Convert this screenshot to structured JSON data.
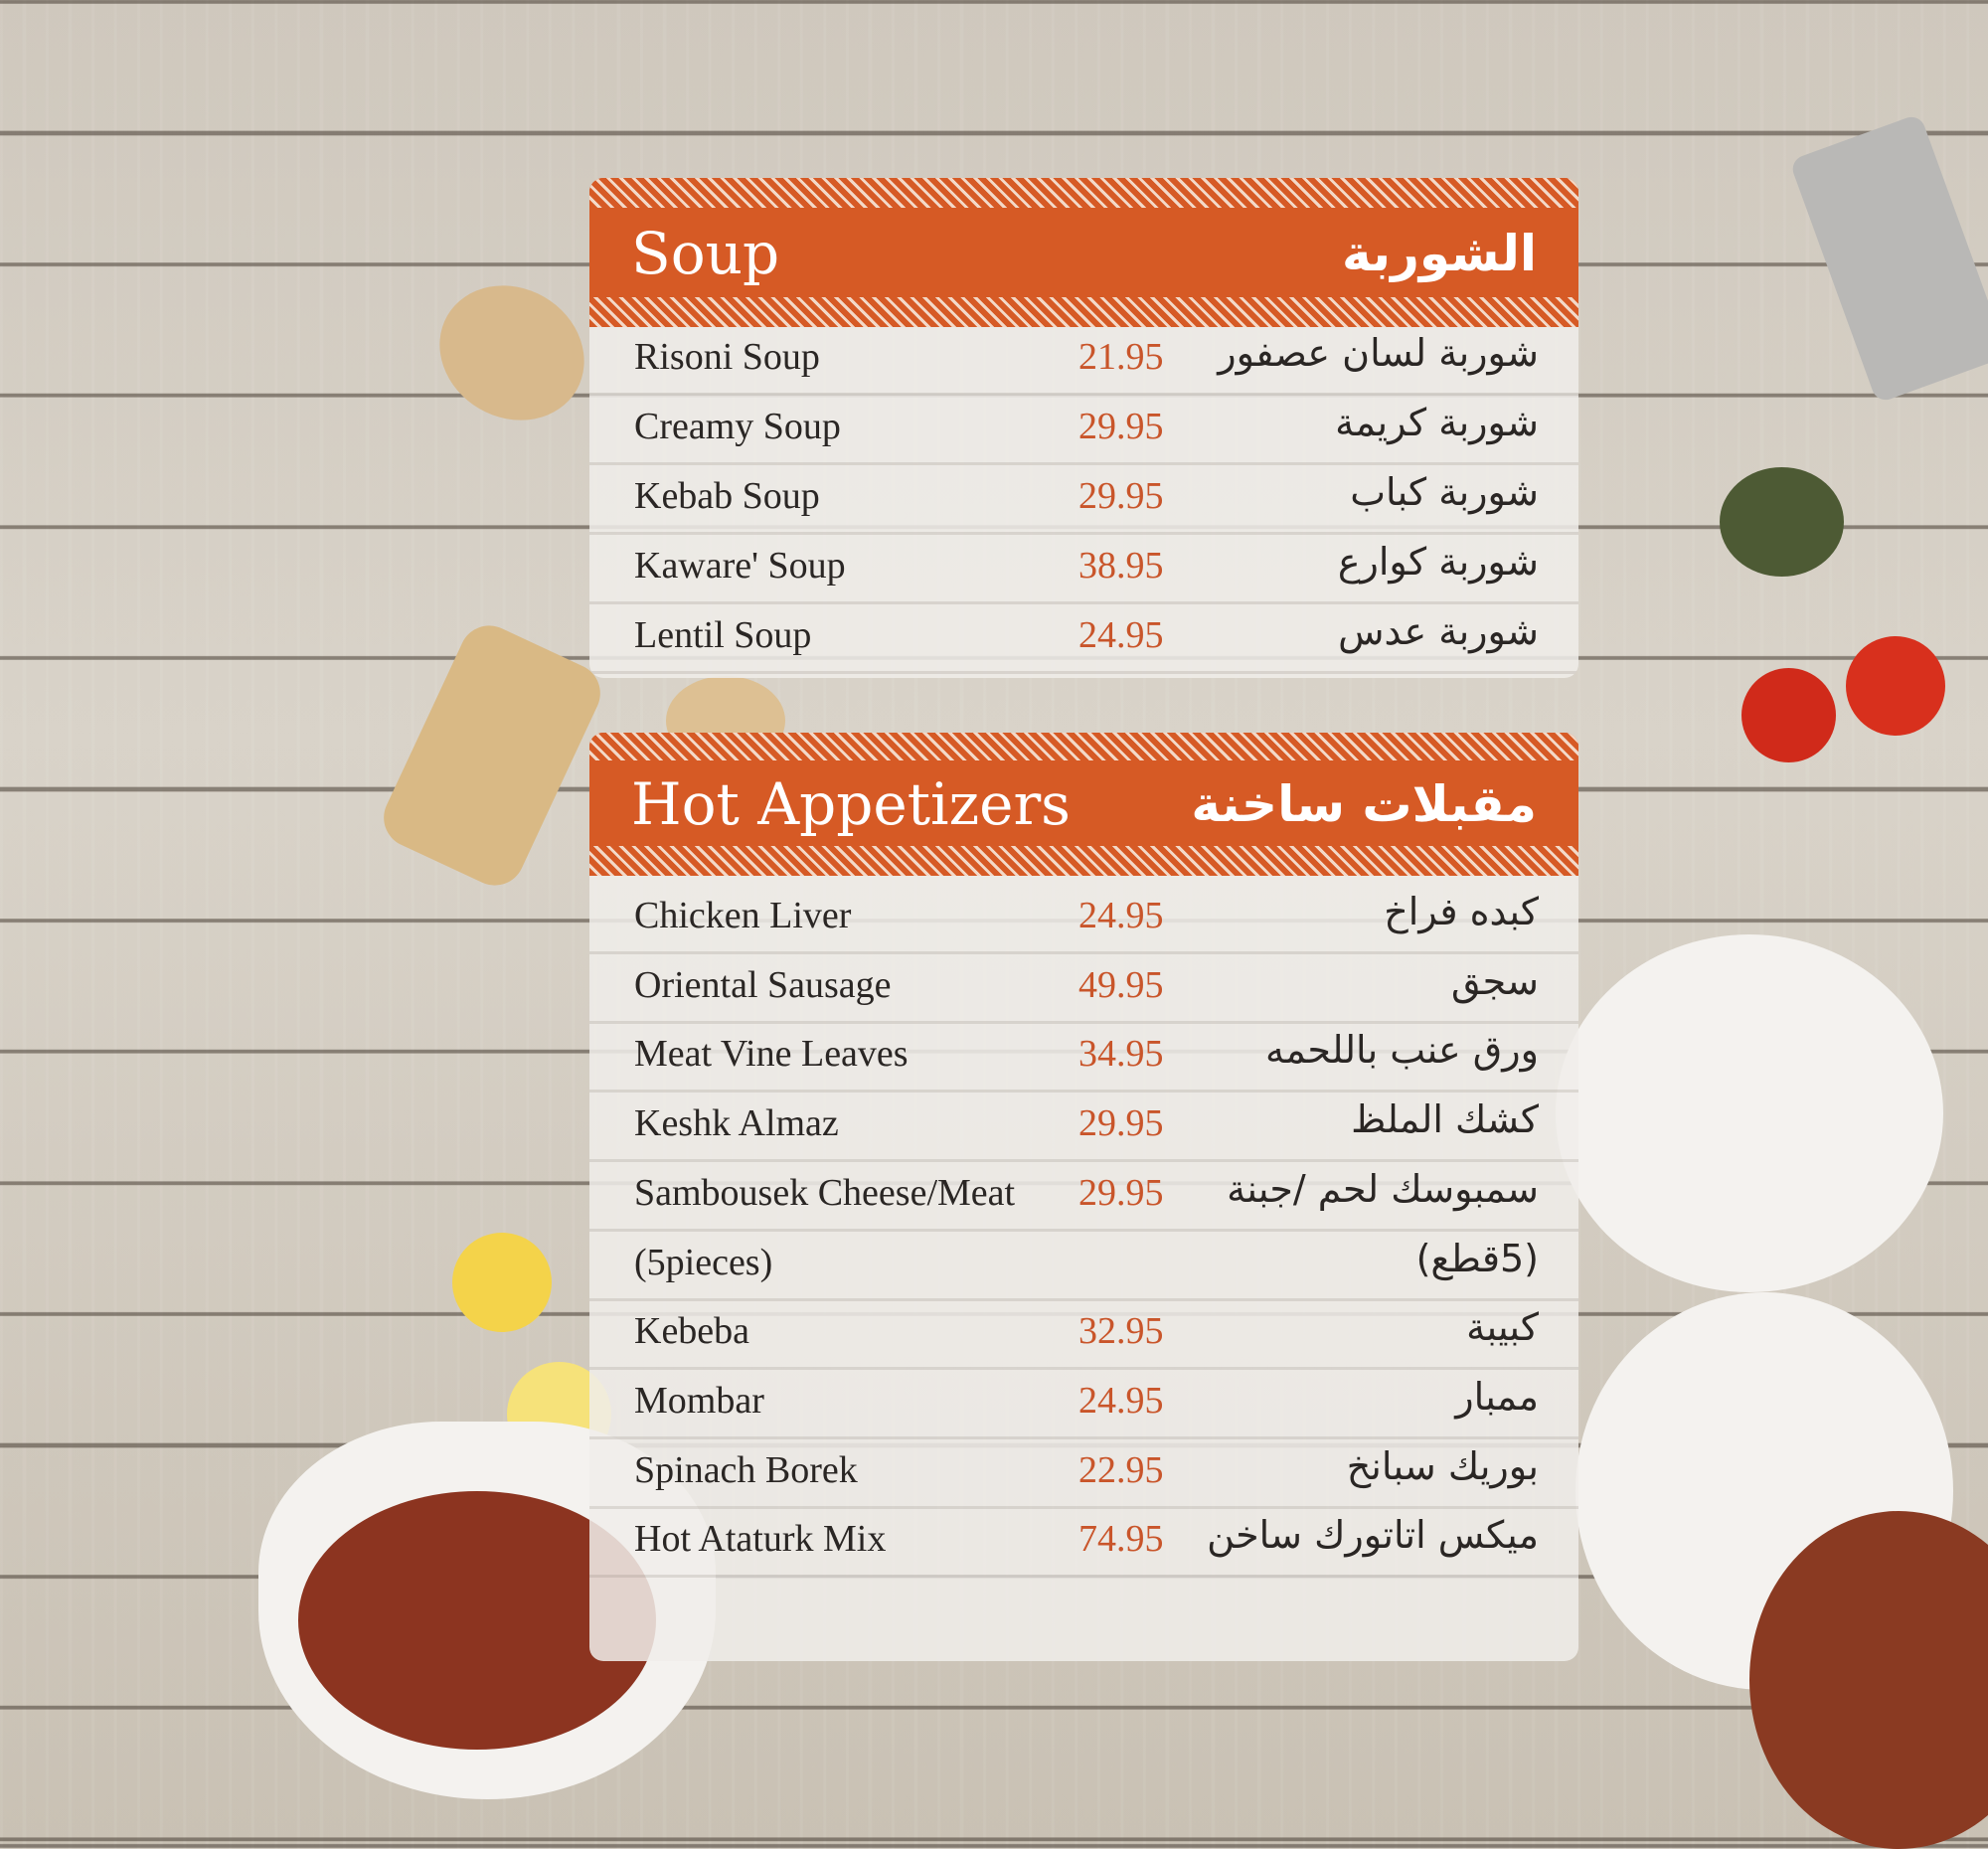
{
  "colors": {
    "accent": "#d65a25",
    "price": "#c9552a",
    "text": "#2a2624"
  },
  "sections": [
    {
      "title_en": "Soup",
      "title_ar": "الشوربة",
      "items": [
        {
          "en": "Risoni Soup",
          "price": "21.95",
          "ar": "شوربة لسان عصفور"
        },
        {
          "en": "Creamy Soup",
          "price": "29.95",
          "ar": "شوربة كريمة"
        },
        {
          "en": "Kebab Soup",
          "price": "29.95",
          "ar": "شوربة كباب"
        },
        {
          "en": "Kaware' Soup",
          "price": "38.95",
          "ar": "شوربة كوارع"
        },
        {
          "en": "Lentil Soup",
          "price": "24.95",
          "ar": "شوربة عدس"
        }
      ]
    },
    {
      "title_en": "Hot Appetizers",
      "title_ar": "مقبلات ساخنة",
      "items": [
        {
          "en": "Chicken Liver",
          "price": "24.95",
          "ar": "كبده فراخ"
        },
        {
          "en": "Oriental Sausage",
          "price": "49.95",
          "ar": "سجق"
        },
        {
          "en": "Meat Vine Leaves",
          "price": "34.95",
          "ar": "ورق عنب باللحمه"
        },
        {
          "en": "Keshk Almaz",
          "price": "29.95",
          "ar": "كشك الملظ"
        },
        {
          "en": "Sambousek Cheese/Meat",
          "price": "29.95",
          "ar": "سمبوسك لحم /جبنة"
        },
        {
          "en": "(5pieces)",
          "price": "",
          "ar": "(5قطع)"
        },
        {
          "en": "Kebeba",
          "price": "32.95",
          "ar": "كبيبة"
        },
        {
          "en": "Mombar",
          "price": "24.95",
          "ar": "ممبار"
        },
        {
          "en": "Spinach Borek",
          "price": "22.95",
          "ar": "بوريك سبانخ"
        },
        {
          "en": "Hot Ataturk Mix",
          "price": "74.95",
          "ar": "ميكس اتاتورك ساخن"
        }
      ]
    }
  ]
}
